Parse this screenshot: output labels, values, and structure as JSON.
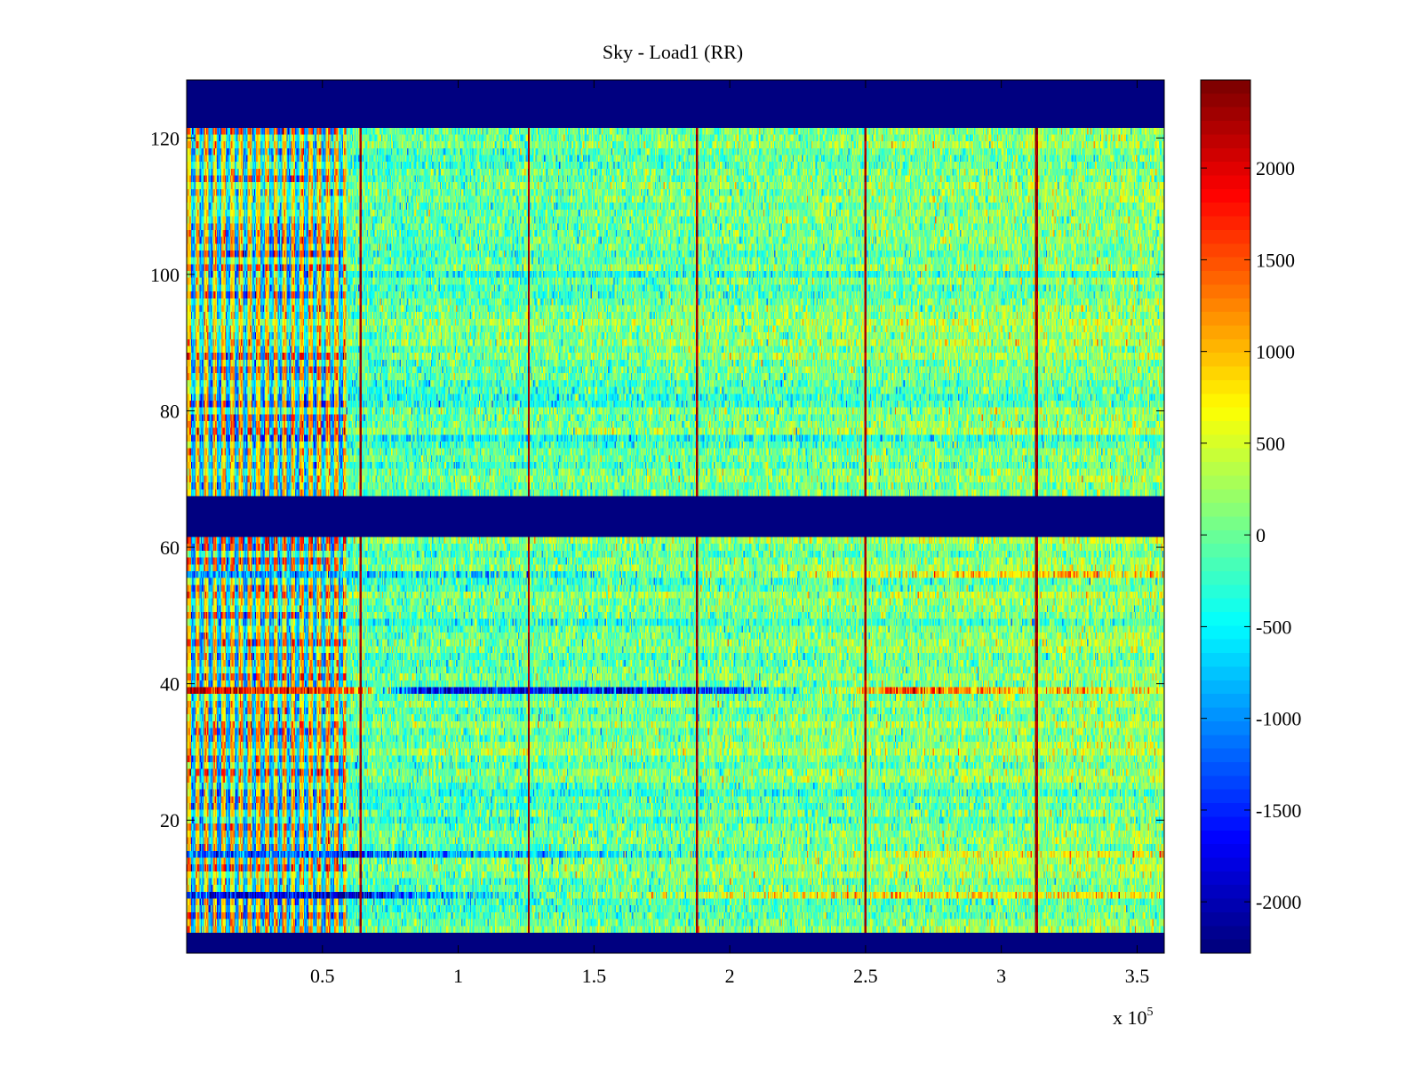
{
  "chart_data": {
    "type": "heatmap",
    "title": "Sky - Load1 (RR)",
    "xlabel": "",
    "ylabel": "",
    "x_multiplier_label": {
      "base": "x 10",
      "exponent": "5"
    },
    "xlim": [
      0,
      3.6
    ],
    "ylim": [
      0.5,
      128.5
    ],
    "xticks": [
      0.5,
      1,
      1.5,
      2,
      2.5,
      3,
      3.5
    ],
    "xtick_labels": [
      "0.5",
      "1",
      "1.5",
      "2",
      "2.5",
      "3",
      "3.5"
    ],
    "yticks": [
      20,
      40,
      60,
      80,
      100,
      120
    ],
    "ytick_labels": [
      "20",
      "40",
      "60",
      "80",
      "100",
      "120"
    ],
    "colormap": "jet",
    "clim": [
      -2280,
      2480
    ],
    "colorbar_ticks": [
      2000,
      1500,
      1000,
      500,
      0,
      -500,
      -1000,
      -1500,
      -2000
    ],
    "colorbar_tick_labels": [
      "2000",
      "1500",
      "1000",
      "500",
      "0",
      "-500",
      "-1000",
      "-1500",
      "-2000"
    ],
    "masked_channel_bands": [
      {
        "from": 1,
        "to": 3,
        "value": -2280
      },
      {
        "from": 62,
        "to": 67,
        "value": -2280
      },
      {
        "from": 122,
        "to": 128,
        "value": -2280
      }
    ],
    "oscillating_region_x_end": 0.59,
    "spike_columns_x": [
      0.64,
      1.26,
      1.88,
      2.5,
      3.13
    ],
    "spike_value": 2300,
    "feature_rows": [
      {
        "channel": 39,
        "description": "strong positive then negative stripe",
        "values_by_x": [
          [
            0.0,
            2100
          ],
          [
            0.6,
            1500
          ],
          [
            0.85,
            -1800
          ],
          [
            1.95,
            -1500
          ],
          [
            2.5,
            900
          ],
          [
            2.65,
            1600
          ],
          [
            3.1,
            800
          ]
        ]
      },
      {
        "channel": 9,
        "description": "negative stripe",
        "values_by_x": [
          [
            0.0,
            -1500
          ],
          [
            0.6,
            -1800
          ],
          [
            1.2,
            -200
          ],
          [
            2.3,
            700
          ],
          [
            3.6,
            700
          ]
        ]
      },
      {
        "channel": 15,
        "description": "negative stripe",
        "values_by_x": [
          [
            0.6,
            -1300
          ],
          [
            1.5,
            -600
          ],
          [
            2.8,
            600
          ]
        ]
      },
      {
        "channel": 56,
        "description": "negative patch then positive patch",
        "values_by_x": [
          [
            0.6,
            -900
          ],
          [
            1.4,
            -300
          ],
          [
            2.8,
            700
          ],
          [
            3.6,
            800
          ]
        ]
      }
    ],
    "background_mean": 0,
    "background_noise_sd": 350
  }
}
